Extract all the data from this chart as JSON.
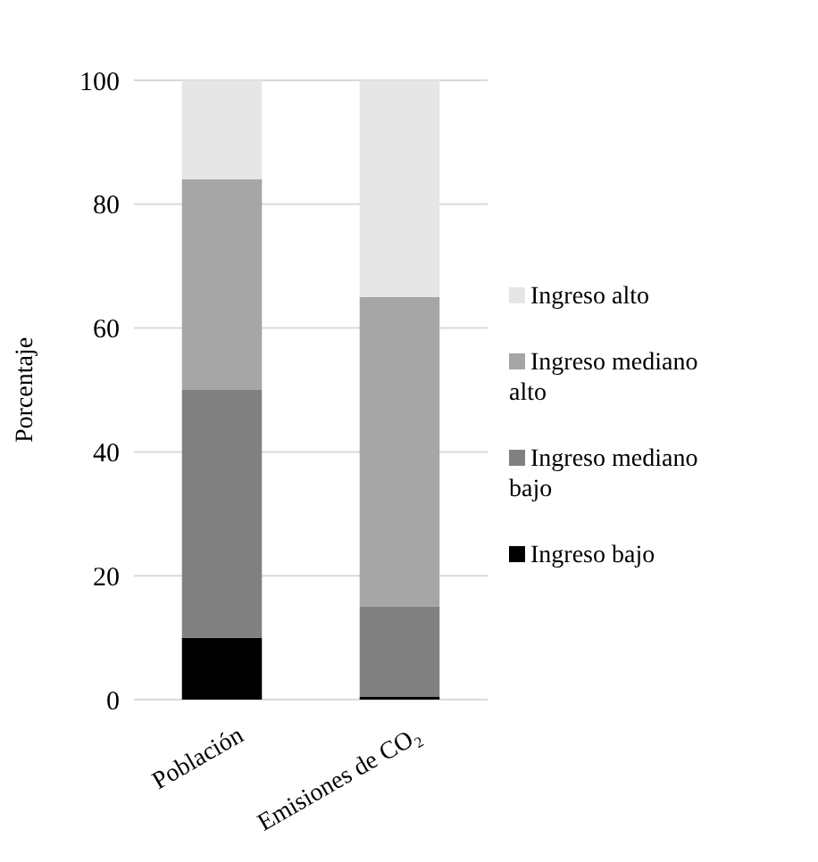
{
  "chart_data": {
    "type": "bar",
    "stacked": true,
    "ylabel": "Porcentaje",
    "categories": [
      "Población",
      "Emisiones de CO₂"
    ],
    "series": [
      {
        "name": "Ingreso bajo",
        "color": "#000000",
        "values": [
          10,
          0.5
        ]
      },
      {
        "name": "Ingreso mediano bajo",
        "color": "#808080",
        "values": [
          40,
          14.5
        ]
      },
      {
        "name": "Ingreso mediano alto",
        "color": "#a6a6a6",
        "values": [
          34,
          50
        ]
      },
      {
        "name": "Ingreso alto",
        "color": "#e6e6e6",
        "values": [
          16,
          35
        ]
      }
    ],
    "ylim": [
      0,
      100
    ],
    "yticks": [
      0,
      20,
      40,
      60,
      80,
      100
    ],
    "grid": "y",
    "legend": "right"
  }
}
